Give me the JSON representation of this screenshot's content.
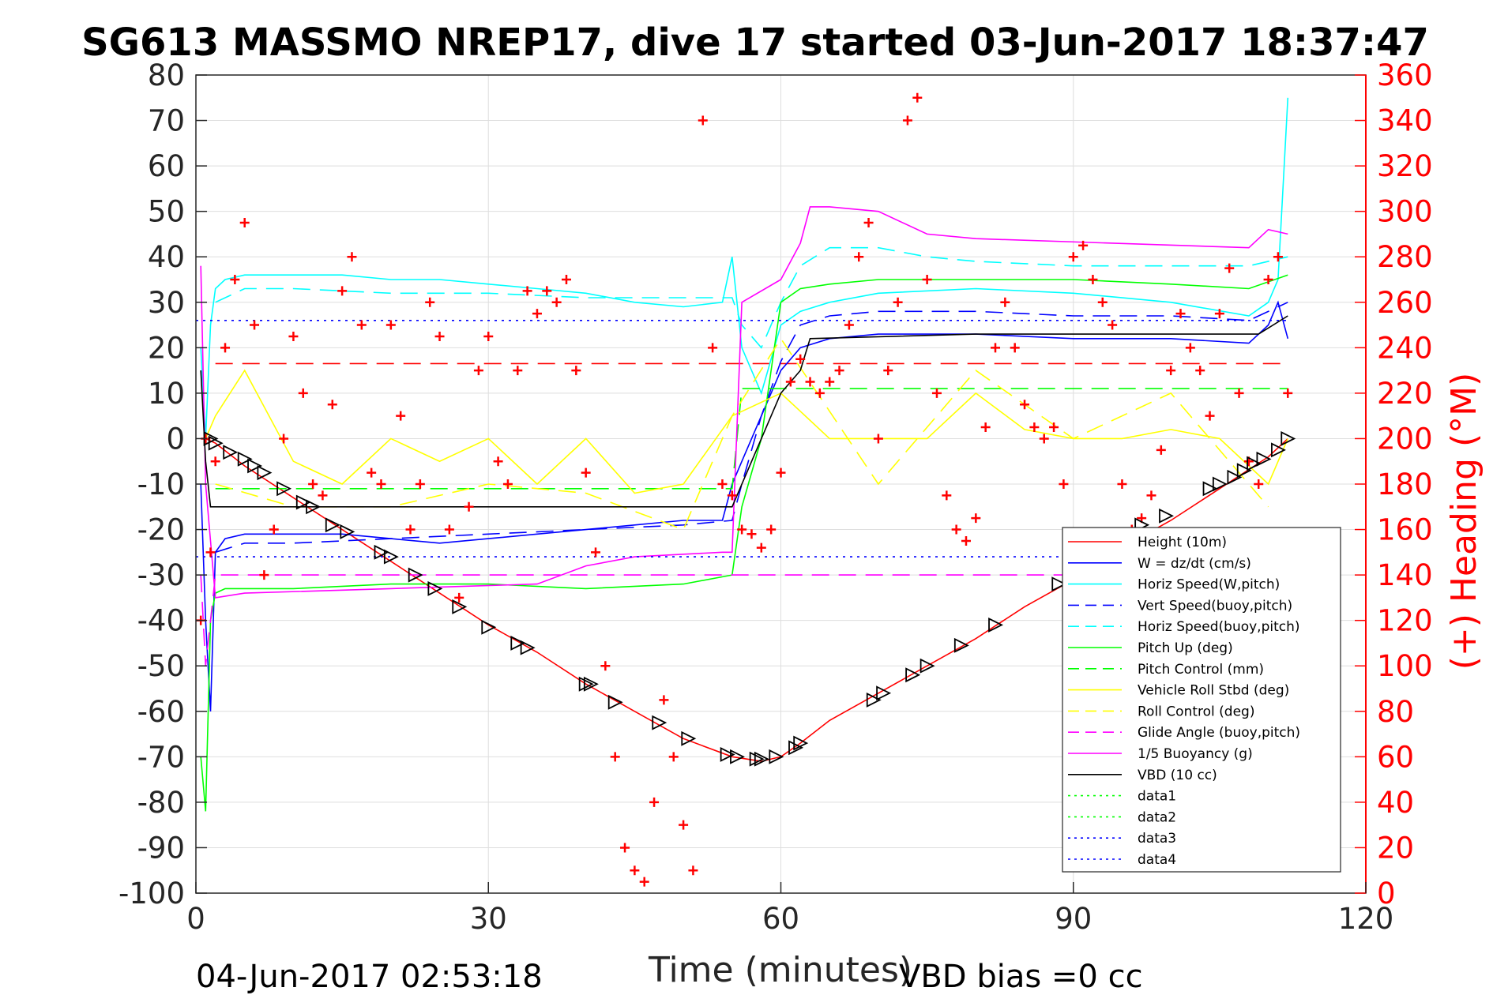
{
  "chart_data": {
    "type": "line",
    "title": "SG613 MASSMO NREP17, dive 17 started 03-Jun-2017 18:37:47",
    "xlabel": "Time (minutes)",
    "ylabel": "",
    "ylabel_right": "(+) Heading (°M)",
    "xlim": [
      0,
      120
    ],
    "ylim": [
      -100,
      80
    ],
    "ylim_right": [
      0,
      360
    ],
    "x_ticks": [
      "0",
      "30",
      "60",
      "90",
      "120"
    ],
    "x_tick_values": [
      0,
      30,
      60,
      90,
      120
    ],
    "y_ticks": [
      "80",
      "70",
      "60",
      "50",
      "40",
      "30",
      "20",
      "10",
      "0",
      "-10",
      "-20",
      "-30",
      "-40",
      "-50",
      "-60",
      "-70",
      "-80",
      "-90",
      "-100"
    ],
    "y_tick_values": [
      80,
      70,
      60,
      50,
      40,
      30,
      20,
      10,
      0,
      -10,
      -20,
      -30,
      -40,
      -50,
      -60,
      -70,
      -80,
      -90,
      -100
    ],
    "y_right_ticks": [
      "360",
      "340",
      "320",
      "300",
      "280",
      "260",
      "240",
      "220",
      "200",
      "180",
      "160",
      "140",
      "120",
      "100",
      "80",
      "60",
      "40",
      "20",
      "0"
    ],
    "y_right_tick_values": [
      360,
      340,
      320,
      300,
      280,
      260,
      240,
      220,
      200,
      180,
      160,
      140,
      120,
      100,
      80,
      60,
      40,
      20,
      0
    ],
    "grid": true,
    "legend_position": "bottom-right",
    "footer_left": "04-Jun-2017 02:53:18",
    "footer_right": "VBD bias =0 cc",
    "series": [
      {
        "name": "Height (10m)",
        "color": "#ff0000",
        "style": "solid",
        "x": [
          1,
          2,
          5,
          10,
          15,
          20,
          25,
          30,
          35,
          40,
          45,
          50,
          55,
          58,
          60,
          62,
          65,
          70,
          75,
          80,
          85,
          90,
          95,
          100,
          105,
          110,
          112
        ],
        "y": [
          0,
          -1,
          -6,
          -13,
          -20,
          -27,
          -34,
          -41,
          -47,
          -54,
          -60,
          -66,
          -70,
          -71,
          -70,
          -67,
          -62,
          -56,
          -50,
          -44,
          -37,
          -31,
          -24,
          -18,
          -11,
          -4,
          0
        ]
      },
      {
        "name": "W = dz/dt (cm/s)",
        "color": "#0000ff",
        "style": "solid",
        "x": [
          0.5,
          1,
          1.5,
          2,
          3,
          5,
          10,
          15,
          20,
          25,
          30,
          35,
          40,
          45,
          50,
          54,
          55,
          56,
          58,
          60,
          62,
          65,
          70,
          80,
          90,
          100,
          108,
          110,
          111,
          112
        ],
        "y": [
          -10,
          -40,
          -60,
          -25,
          -22,
          -21,
          -21,
          -21,
          -22,
          -23,
          -22,
          -21,
          -20,
          -19,
          -18,
          -18,
          -10,
          -5,
          5,
          15,
          20,
          22,
          23,
          23,
          22,
          22,
          21,
          25,
          30,
          22
        ]
      },
      {
        "name": "Horiz Speed(W,pitch)",
        "color": "#00ffff",
        "style": "solid",
        "x": [
          0.5,
          1,
          1.5,
          2,
          3,
          5,
          10,
          15,
          20,
          25,
          30,
          35,
          40,
          45,
          50,
          54,
          55,
          56,
          58,
          60,
          62,
          65,
          70,
          80,
          90,
          100,
          108,
          110,
          111,
          112
        ],
        "y": [
          20,
          0,
          25,
          33,
          35,
          36,
          36,
          36,
          35,
          35,
          34,
          33,
          32,
          30,
          29,
          30,
          40,
          20,
          10,
          25,
          28,
          30,
          32,
          33,
          32,
          30,
          27,
          30,
          35,
          75
        ]
      },
      {
        "name": "Vert Speed(buoy,pitch)",
        "color": "#0000ff",
        "style": "dashed",
        "x": [
          2,
          5,
          10,
          20,
          30,
          40,
          50,
          55,
          56,
          58,
          60,
          62,
          65,
          70,
          80,
          90,
          100,
          108,
          112
        ],
        "y": [
          -25,
          -23,
          -23,
          -22,
          -21,
          -20,
          -19,
          -18,
          -10,
          5,
          17,
          25,
          27,
          28,
          28,
          27,
          27,
          26,
          30
        ]
      },
      {
        "name": "Horiz Speed(buoy,pitch)",
        "color": "#00ffff",
        "style": "dashed",
        "x": [
          2,
          5,
          10,
          20,
          30,
          40,
          50,
          55,
          56,
          58,
          60,
          62,
          65,
          70,
          75,
          80,
          90,
          100,
          108,
          112
        ],
        "y": [
          30,
          33,
          33,
          32,
          32,
          31,
          31,
          31,
          25,
          20,
          30,
          38,
          42,
          42,
          40,
          39,
          38,
          38,
          38,
          40
        ]
      },
      {
        "name": "Pitch Up (deg)",
        "color": "#00ff00",
        "style": "solid",
        "x": [
          0.5,
          1,
          1.5,
          2,
          3,
          5,
          10,
          20,
          30,
          40,
          50,
          55,
          56,
          58,
          60,
          62,
          65,
          70,
          80,
          90,
          100,
          108,
          112
        ],
        "y": [
          -70,
          -82,
          -40,
          -34,
          -33,
          -33,
          -33,
          -32,
          -32,
          -33,
          -32,
          -30,
          -15,
          0,
          30,
          33,
          34,
          35,
          35,
          35,
          34,
          33,
          36
        ]
      },
      {
        "name": "Pitch Control (mm)",
        "color": "#00ff00",
        "style": "dashed",
        "x": [
          2,
          55,
          56,
          112
        ],
        "y": [
          -11,
          -11,
          11,
          11
        ]
      },
      {
        "name": "Vehicle Roll Stbd (deg)",
        "color": "#ffff00",
        "style": "solid",
        "x": [
          1,
          2,
          5,
          10,
          15,
          20,
          25,
          30,
          35,
          40,
          45,
          50,
          55,
          60,
          65,
          70,
          75,
          80,
          85,
          90,
          95,
          100,
          105,
          110,
          112
        ],
        "y": [
          0,
          5,
          15,
          -5,
          -10,
          0,
          -5,
          0,
          -10,
          0,
          -12,
          -10,
          5,
          10,
          0,
          0,
          0,
          10,
          2,
          0,
          0,
          2,
          0,
          -10,
          0
        ]
      },
      {
        "name": "Roll Control (deg)",
        "color": "#ffff00",
        "style": "dashed",
        "x": [
          2,
          10,
          20,
          30,
          40,
          50,
          55,
          60,
          70,
          80,
          90,
          100,
          110
        ],
        "y": [
          -10,
          -15,
          -15,
          -10,
          -12,
          -20,
          5,
          22,
          -10,
          15,
          0,
          10,
          -15
        ]
      },
      {
        "name": "Glide Angle (buoy,pitch)",
        "color": "#ff00ff",
        "style": "dashed",
        "x": [
          0.5,
          1,
          2,
          112
        ],
        "y": [
          -30,
          -50,
          -30,
          -30
        ]
      },
      {
        "name": "1/5 Buoyancy (g)",
        "color": "#ff00ff",
        "style": "solid",
        "x": [
          0.5,
          1,
          2,
          5,
          20,
          35,
          40,
          45,
          54,
          55,
          56,
          60,
          62,
          63,
          65,
          70,
          75,
          80,
          108,
          110,
          112
        ],
        "y": [
          38,
          -10,
          -35,
          -34,
          -33,
          -32,
          -28,
          -26,
          -25,
          -25,
          30,
          35,
          43,
          51,
          51,
          50,
          45,
          44,
          42,
          46,
          45
        ]
      },
      {
        "name": "VBD (10 cc)",
        "color": "#000000",
        "style": "solid",
        "x": [
          0.5,
          1,
          1.5,
          2,
          10,
          30,
          54,
          55,
          60,
          62,
          63,
          80,
          90,
          108,
          109,
          112
        ],
        "y": [
          15,
          -5,
          -15,
          -15,
          -15,
          -15,
          -15,
          -15,
          10,
          15,
          22,
          23,
          23,
          23,
          23,
          27
        ]
      },
      {
        "name": "data1",
        "color": "#00ff00",
        "style": "dotted",
        "x": [],
        "y": []
      },
      {
        "name": "data2",
        "color": "#00ff00",
        "style": "dotted",
        "x": [],
        "y": []
      },
      {
        "name": "data3",
        "color": "#0000ff",
        "style": "dotted",
        "x": [
          0,
          112
        ],
        "y": [
          26,
          26
        ]
      },
      {
        "name": "data4",
        "color": "#0000ff",
        "style": "dotted",
        "x": [
          0,
          112
        ],
        "y": [
          -26,
          -26
        ]
      }
    ],
    "reference_lines": [
      {
        "color": "#ff0000",
        "style": "dashed",
        "y": 16.5,
        "x": [
          2,
          112
        ]
      }
    ],
    "heading": {
      "color": "#ff0000",
      "marker": "+",
      "axis": "right",
      "x": [
        0.5,
        1,
        1.5,
        2,
        3,
        4,
        5,
        6,
        7,
        8,
        9,
        10,
        11,
        12,
        13,
        14,
        15,
        16,
        17,
        18,
        19,
        20,
        21,
        22,
        23,
        24,
        25,
        26,
        27,
        28,
        29,
        30,
        31,
        32,
        33,
        34,
        35,
        36,
        37,
        38,
        39,
        40,
        41,
        42,
        43,
        44,
        45,
        46,
        47,
        48,
        49,
        50,
        51,
        52,
        53,
        54,
        55,
        56,
        57,
        58,
        59,
        60,
        61,
        62,
        63,
        64,
        65,
        66,
        67,
        68,
        69,
        70,
        71,
        72,
        73,
        74,
        75,
        76,
        77,
        78,
        79,
        80,
        81,
        82,
        83,
        84,
        85,
        86,
        87,
        88,
        89,
        90,
        91,
        92,
        93,
        94,
        95,
        96,
        97,
        98,
        99,
        100,
        101,
        102,
        103,
        104,
        105,
        106,
        107,
        108,
        109,
        110,
        111,
        112
      ],
      "y": [
        120,
        200,
        150,
        190,
        240,
        270,
        295,
        250,
        140,
        160,
        200,
        245,
        220,
        180,
        175,
        215,
        265,
        280,
        250,
        185,
        180,
        250,
        210,
        160,
        180,
        260,
        245,
        160,
        130,
        170,
        230,
        245,
        190,
        180,
        230,
        265,
        255,
        265,
        260,
        270,
        230,
        185,
        150,
        100,
        60,
        20,
        10,
        5,
        40,
        85,
        60,
        30,
        10,
        340,
        240,
        180,
        175,
        160,
        158,
        152,
        160,
        185,
        225,
        235,
        225,
        220,
        225,
        230,
        250,
        280,
        295,
        200,
        230,
        260,
        340,
        350,
        270,
        220,
        175,
        160,
        155,
        165,
        205,
        240,
        260,
        240,
        215,
        205,
        200,
        205,
        180,
        280,
        285,
        270,
        260,
        250,
        180,
        160,
        165,
        175,
        195,
        230,
        255,
        240,
        230,
        210,
        255,
        275,
        220,
        190,
        180,
        270,
        280,
        220
      ]
    },
    "depth_markers": {
      "color": "#000000",
      "marker": "triangle",
      "x": [
        1.5,
        2,
        3.5,
        5,
        6,
        7,
        9,
        11,
        12,
        14,
        15.5,
        19,
        20,
        22.5,
        24.5,
        27,
        30,
        33,
        34,
        40,
        40.5,
        43,
        47.5,
        50.5,
        54.5,
        55.5,
        57.5,
        58,
        59.5,
        61.5,
        62,
        69.5,
        70.5,
        73.5,
        75,
        78.5,
        82,
        88.5,
        97,
        99.5,
        104,
        105,
        106.5,
        107.5,
        108.5,
        109.5,
        111,
        112
      ],
      "y": [
        0,
        -1,
        -3,
        -4.5,
        -6,
        -7.5,
        -11,
        -14,
        -15,
        -19,
        -20.5,
        -25,
        -26,
        -30,
        -33,
        -37,
        -41.5,
        -45,
        -46,
        -54,
        -54,
        -58,
        -62.5,
        -66,
        -69.5,
        -70,
        -70.5,
        -70.5,
        -70,
        -68,
        -67,
        -57.5,
        -56,
        -52,
        -50,
        -45.5,
        -41,
        -32,
        -19,
        -17,
        -11,
        -10,
        -8.5,
        -7,
        -5.5,
        -4.5,
        -2.5,
        0
      ]
    }
  }
}
